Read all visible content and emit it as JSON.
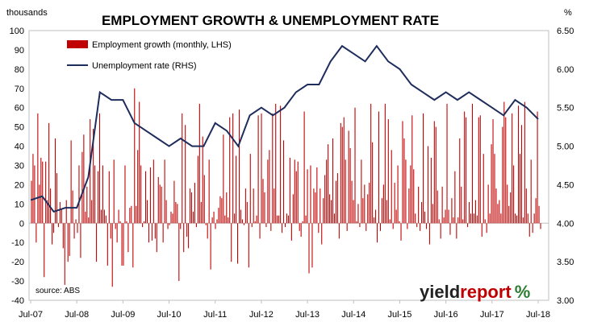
{
  "chart_data": {
    "type": "bar+line",
    "title": "EMPLOYMENT GROWTH & UNEMPLOYMENT RATE",
    "y_left_unit": "thousands",
    "y_right_unit": "%",
    "y_left_ticks": [
      "100",
      "90",
      "80",
      "70",
      "60",
      "50",
      "40",
      "30",
      "20",
      "10",
      "0",
      "-10",
      "-20",
      "-30",
      "-40"
    ],
    "y_right_ticks": [
      "6.50",
      "6.00",
      "5.50",
      "5.00",
      "4.50",
      "4.00",
      "3.50",
      "3.00"
    ],
    "x_ticks": [
      "Jul-07",
      "Jul-08",
      "Jul-09",
      "Jul-10",
      "Jul-11",
      "Jul-12",
      "Jul-13",
      "Jul-14",
      "Jul-15",
      "Jul-16",
      "Jul-17",
      "Jul-18"
    ],
    "ylim_left": [
      -40,
      100
    ],
    "ylim_right": [
      3.0,
      6.5
    ],
    "grid": false,
    "legend_position": "top-left",
    "source": "source: ABS",
    "series": [
      {
        "name": "Employment growth (monthly, LHS)",
        "axis": "left",
        "kind": "bar",
        "color": "#c00000",
        "values": [
          22,
          36,
          30,
          -10,
          57,
          20,
          34,
          32,
          -28,
          32,
          12,
          52,
          18,
          -11,
          -5,
          44,
          26,
          -2,
          11,
          7,
          -13,
          -32,
          12,
          -20,
          -17,
          43,
          17,
          -8,
          2,
          -5,
          30,
          -18,
          37,
          46,
          6,
          19,
          3,
          54,
          12,
          49,
          30,
          -20,
          27,
          57,
          7,
          30,
          7,
          4,
          -22,
          27,
          -8,
          -33,
          33,
          -3,
          -10,
          7,
          1,
          -22,
          -22,
          30,
          1,
          -15,
          8,
          9,
          -23,
          70,
          9,
          38,
          63,
          30,
          -2,
          1,
          27,
          12,
          -10,
          29,
          -9,
          33,
          -8,
          -15,
          24,
          20,
          19,
          -10,
          33,
          12,
          -3,
          -1,
          6,
          5,
          22,
          11,
          10,
          -30,
          -3,
          57,
          -15,
          51,
          -7,
          -13,
          18,
          16,
          6,
          21,
          -2,
          35,
          62,
          11,
          45,
          25,
          -1,
          -8,
          33,
          -24,
          3,
          6,
          -3,
          2,
          8,
          14,
          13,
          46,
          4,
          16,
          3,
          55,
          -20,
          57,
          5,
          35,
          -21,
          59,
          7,
          2,
          -1,
          18,
          11,
          -23,
          36,
          -2,
          18,
          1,
          4,
          56,
          -8,
          57,
          23,
          16,
          -2,
          33,
          38,
          -4,
          57,
          18,
          62,
          4,
          4,
          61,
          -5,
          43,
          -2,
          5,
          4,
          34,
          -9,
          15,
          33,
          27,
          32,
          -4,
          -7,
          1,
          58,
          4,
          28,
          -26,
          30,
          -23,
          18,
          16,
          29,
          -5,
          18,
          -11,
          13,
          25,
          33,
          41,
          15,
          12,
          44,
          5,
          22,
          26,
          -8,
          52,
          50,
          55,
          33,
          -4,
          48,
          39,
          22,
          12,
          60,
          1,
          10,
          -2,
          33,
          13,
          20,
          -4,
          15,
          21,
          62,
          42,
          3,
          7,
          -10,
          58,
          -4,
          13,
          20,
          62,
          12,
          54,
          2,
          38,
          -3,
          21,
          7,
          30,
          1,
          -9,
          53,
          44,
          33,
          -3,
          18,
          30,
          56,
          28,
          5,
          -2,
          19,
          -4,
          11,
          57,
          6,
          -3,
          40,
          -11,
          34,
          10,
          53,
          50,
          17,
          2,
          -8,
          19,
          3,
          7,
          62,
          7,
          -6,
          13,
          3,
          27,
          -8,
          3,
          44,
          19,
          2,
          58,
          55,
          -2,
          11,
          5,
          62,
          5,
          12,
          4,
          55,
          56,
          -7,
          36,
          2,
          -5,
          20,
          5,
          41,
          54,
          36,
          18,
          10,
          12,
          5,
          50,
          63,
          55,
          20,
          9,
          16,
          57,
          30,
          5,
          4,
          61,
          36,
          51,
          3,
          63,
          18,
          5,
          -7,
          33,
          -5,
          5,
          13,
          58,
          9,
          -3
        ]
      },
      {
        "name": "Unemployment rate (RHS)",
        "axis": "right",
        "kind": "line",
        "color": "#1f2d5c",
        "x": [
          "Jul-07",
          "Oct-07",
          "Jan-08",
          "Apr-08",
          "Jul-08",
          "Oct-08",
          "Jan-09",
          "Apr-09",
          "Jul-09",
          "Oct-09",
          "Jan-10",
          "Apr-10",
          "Jul-10",
          "Oct-10",
          "Jan-11",
          "Apr-11",
          "Jul-11",
          "Oct-11",
          "Jan-12",
          "Apr-12",
          "Jul-12",
          "Oct-12",
          "Jan-13",
          "Apr-13",
          "Jul-13",
          "Oct-13",
          "Jan-14",
          "Apr-14",
          "Jul-14",
          "Oct-14",
          "Jan-15",
          "Apr-15",
          "Jul-15",
          "Oct-15",
          "Jan-16",
          "Apr-16",
          "Jul-16",
          "Oct-16",
          "Jan-17",
          "Apr-17",
          "Jul-17",
          "Oct-17",
          "Jan-18",
          "Apr-18",
          "Jul-18"
        ],
        "values": [
          4.3,
          4.35,
          4.15,
          4.2,
          4.2,
          4.6,
          5.7,
          5.6,
          5.6,
          5.3,
          5.2,
          5.1,
          5.0,
          5.1,
          5.0,
          5.0,
          5.3,
          5.2,
          5.0,
          5.4,
          5.5,
          5.4,
          5.5,
          5.7,
          5.8,
          5.8,
          6.1,
          6.3,
          6.2,
          6.1,
          6.3,
          6.1,
          6.0,
          5.8,
          5.7,
          5.6,
          5.7,
          5.6,
          5.7,
          5.6,
          5.5,
          5.4,
          5.6,
          5.5,
          5.35
        ]
      }
    ]
  },
  "logo": {
    "text_dark": "yield",
    "text_red": "report",
    "symbol": "%"
  }
}
